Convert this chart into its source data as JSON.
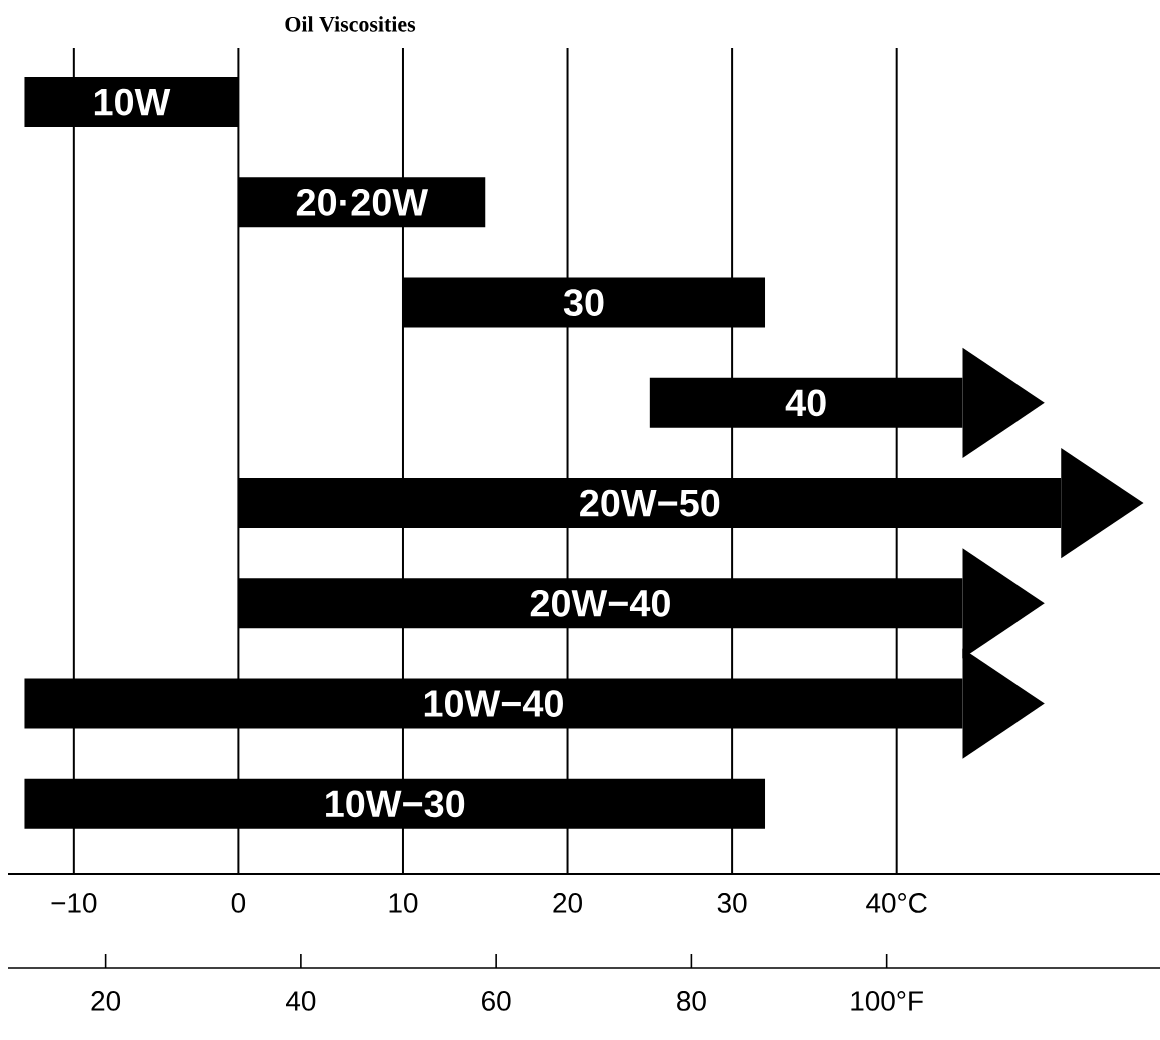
{
  "chart_data": {
    "type": "bar",
    "orientation": "horizontal",
    "title": "Oil Viscosities",
    "categories": [
      null,
      null,
      null,
      null,
      null,
      null,
      null,
      null
    ],
    "annotations": [
      "10W",
      "20·20W",
      "30",
      "40",
      "20W−50",
      "20W−40",
      "10W−40",
      "10W−30"
    ],
    "base": [
      -13,
      0,
      10,
      25,
      0,
      0,
      -13,
      -13
    ],
    "values": [
      13,
      15,
      22,
      19,
      50,
      44,
      57,
      45
    ],
    "color": "#000000",
    "xlim": [
      -14,
      56
    ],
    "xticks": [
      {
        "value": -10,
        "label": "−10"
      },
      0,
      10,
      20,
      30,
      {
        "value": 40,
        "label": "40°C"
      }
    ],
    "x2lim": [
      10,
      128
    ],
    "x2ticks": [
      20,
      40,
      60,
      80,
      {
        "value": 100,
        "label": "100°F"
      }
    ],
    "grid": "x"
  }
}
